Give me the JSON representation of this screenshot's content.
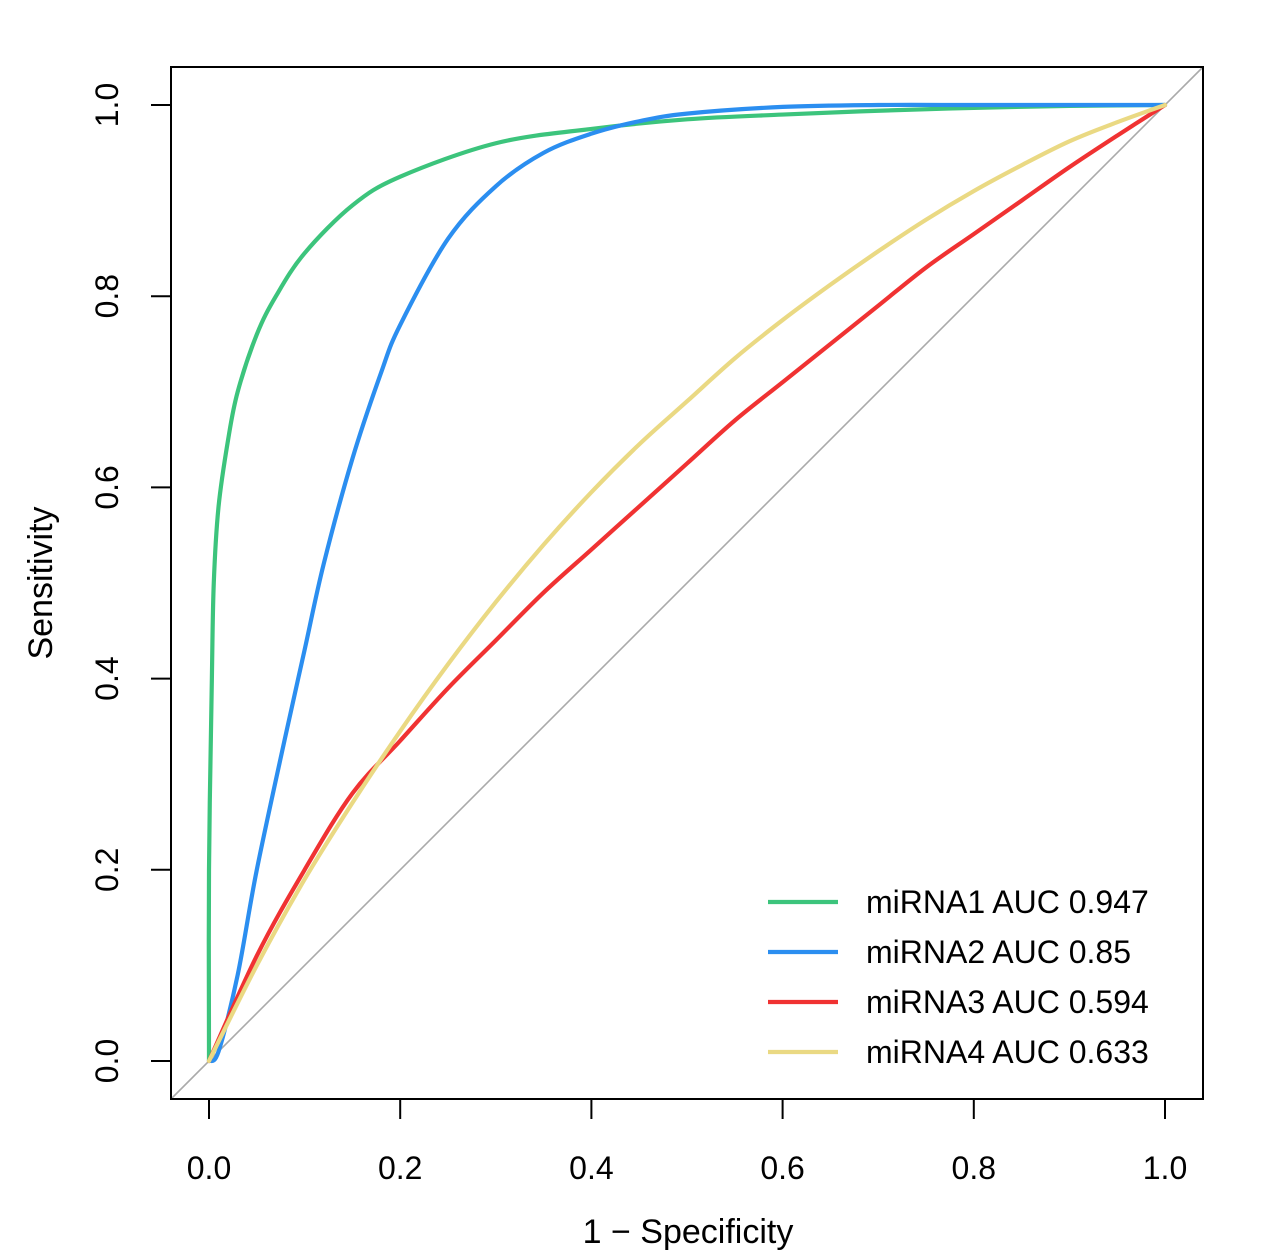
{
  "chart_data": {
    "type": "line",
    "title": "",
    "xlabel": "1 − Specificity",
    "ylabel": "Sensitivity",
    "xlim": [
      0.0,
      1.0
    ],
    "ylim": [
      0.0,
      1.0
    ],
    "x_ticks": [
      "0.0",
      "0.2",
      "0.4",
      "0.6",
      "0.8",
      "1.0"
    ],
    "y_ticks": [
      "0.0",
      "0.2",
      "0.4",
      "0.6",
      "0.8",
      "1.0"
    ],
    "grid": false,
    "legend_position": "bottom-right",
    "reference_line": {
      "name": "chance diagonal",
      "color": "#aaaaaa"
    },
    "series": [
      {
        "name": "miRNA1",
        "label": "miRNA1 AUC 0.947",
        "auc": 0.947,
        "color": "#3cc47c",
        "x": [
          0,
          0,
          0.003,
          0.005,
          0.01,
          0.02,
          0.03,
          0.05,
          0.07,
          0.1,
          0.15,
          0.2,
          0.3,
          0.4,
          0.5,
          0.6,
          0.7,
          0.8,
          0.9,
          1.0
        ],
        "y": [
          0,
          0.2,
          0.4,
          0.5,
          0.58,
          0.65,
          0.7,
          0.76,
          0.8,
          0.845,
          0.895,
          0.925,
          0.96,
          0.975,
          0.985,
          0.99,
          0.994,
          0.997,
          0.999,
          1.0
        ]
      },
      {
        "name": "miRNA2",
        "label": "miRNA2 AUC 0.85",
        "auc": 0.85,
        "color": "#2b8ef0",
        "x": [
          0,
          0.01,
          0.03,
          0.05,
          0.08,
          0.1,
          0.12,
          0.15,
          0.18,
          0.2,
          0.25,
          0.3,
          0.35,
          0.4,
          0.45,
          0.5,
          0.6,
          0.7,
          0.8,
          0.9,
          1.0
        ],
        "y": [
          0,
          0.01,
          0.09,
          0.2,
          0.34,
          0.43,
          0.52,
          0.63,
          0.72,
          0.77,
          0.86,
          0.915,
          0.95,
          0.97,
          0.983,
          0.991,
          0.998,
          1.0,
          1.0,
          1.0,
          1.0
        ]
      },
      {
        "name": "miRNA3",
        "label": "miRNA3 AUC 0.594",
        "auc": 0.594,
        "color": "#f03232",
        "x": [
          0,
          0.05,
          0.1,
          0.15,
          0.2,
          0.25,
          0.3,
          0.35,
          0.4,
          0.45,
          0.5,
          0.55,
          0.6,
          0.65,
          0.7,
          0.75,
          0.8,
          0.85,
          0.9,
          0.95,
          1.0
        ],
        "y": [
          0,
          0.11,
          0.2,
          0.28,
          0.335,
          0.39,
          0.44,
          0.49,
          0.535,
          0.58,
          0.625,
          0.67,
          0.71,
          0.75,
          0.79,
          0.83,
          0.865,
          0.9,
          0.935,
          0.968,
          1.0
        ]
      },
      {
        "name": "miRNA4",
        "label": "miRNA4 AUC 0.633",
        "auc": 0.633,
        "color": "#ead983",
        "x": [
          0,
          0.05,
          0.1,
          0.15,
          0.2,
          0.25,
          0.3,
          0.35,
          0.4,
          0.45,
          0.5,
          0.55,
          0.6,
          0.65,
          0.7,
          0.75,
          0.8,
          0.85,
          0.9,
          0.95,
          1.0
        ],
        "y": [
          0,
          0.1,
          0.19,
          0.27,
          0.345,
          0.415,
          0.48,
          0.54,
          0.595,
          0.645,
          0.69,
          0.735,
          0.775,
          0.812,
          0.847,
          0.88,
          0.91,
          0.937,
          0.962,
          0.982,
          1.0
        ]
      }
    ]
  }
}
